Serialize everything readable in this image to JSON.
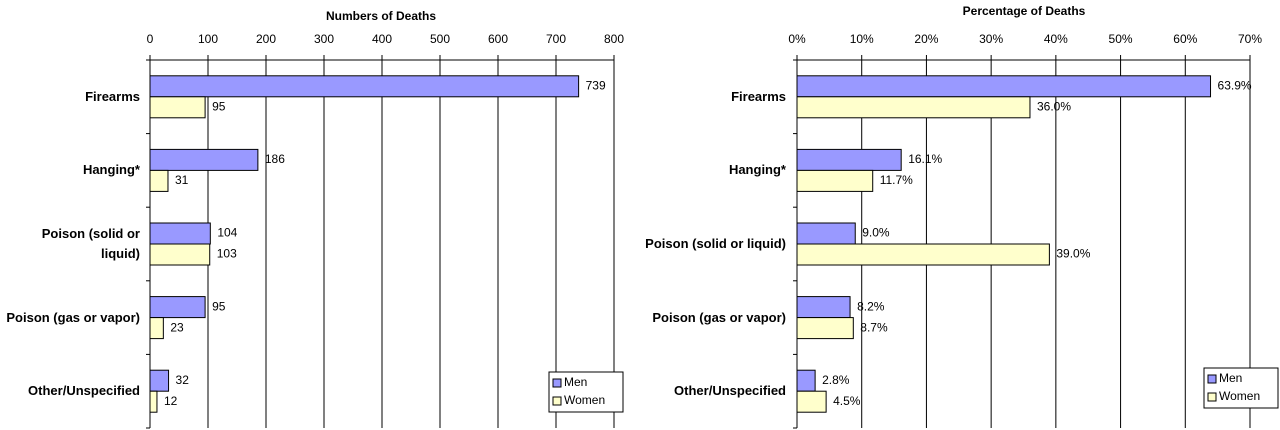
{
  "chart_data": [
    {
      "type": "bar",
      "orientation": "horizontal",
      "title": "Numbers of Deaths",
      "categories": [
        "Firearms",
        "Hanging*",
        "Poison (solid or liquid)",
        "Poison (gas or vapor)",
        "Other/Unspecified"
      ],
      "series": [
        {
          "name": "Men",
          "color": "#9999ff",
          "values": [
            739,
            186,
            104,
            95,
            32
          ]
        },
        {
          "name": "Women",
          "color": "#ffffcc",
          "values": [
            95,
            31,
            103,
            23,
            12
          ]
        }
      ],
      "xlim": [
        0,
        800
      ],
      "xticks": [
        0,
        100,
        200,
        300,
        400,
        500,
        600,
        700,
        800
      ],
      "grid": true,
      "legend": "bottom-right"
    },
    {
      "type": "bar",
      "orientation": "horizontal",
      "title": "Percentage of Deaths",
      "categories": [
        "Firearms",
        "Hanging*",
        "Poison (solid or liquid)",
        "Poison (gas or vapor)",
        "Other/Unspecified"
      ],
      "series": [
        {
          "name": "Men",
          "color": "#9999ff",
          "values": [
            63.9,
            16.1,
            9.0,
            8.2,
            2.8
          ],
          "value_labels": [
            "63.9%",
            "16.1%",
            "9.0%",
            "8.2%",
            "2.8%"
          ]
        },
        {
          "name": "Women",
          "color": "#ffffcc",
          "values": [
            36.0,
            11.7,
            39.0,
            8.7,
            4.5
          ],
          "value_labels": [
            "36.0%",
            "11.7%",
            "39.0%",
            "8.7%",
            "4.5%"
          ]
        }
      ],
      "xlim": [
        0,
        70
      ],
      "xticks": [
        {
          "value": 0,
          "label": "0%"
        },
        {
          "value": 10,
          "label": "10%"
        },
        {
          "value": 20,
          "label": "20%"
        },
        {
          "value": 30,
          "label": "30%"
        },
        {
          "value": 40,
          "label": "40%"
        },
        {
          "value": 50,
          "label": "50%"
        },
        {
          "value": 60,
          "label": "60%"
        },
        {
          "value": 70,
          "label": "70%"
        }
      ],
      "grid": true,
      "legend": "bottom-right"
    }
  ]
}
